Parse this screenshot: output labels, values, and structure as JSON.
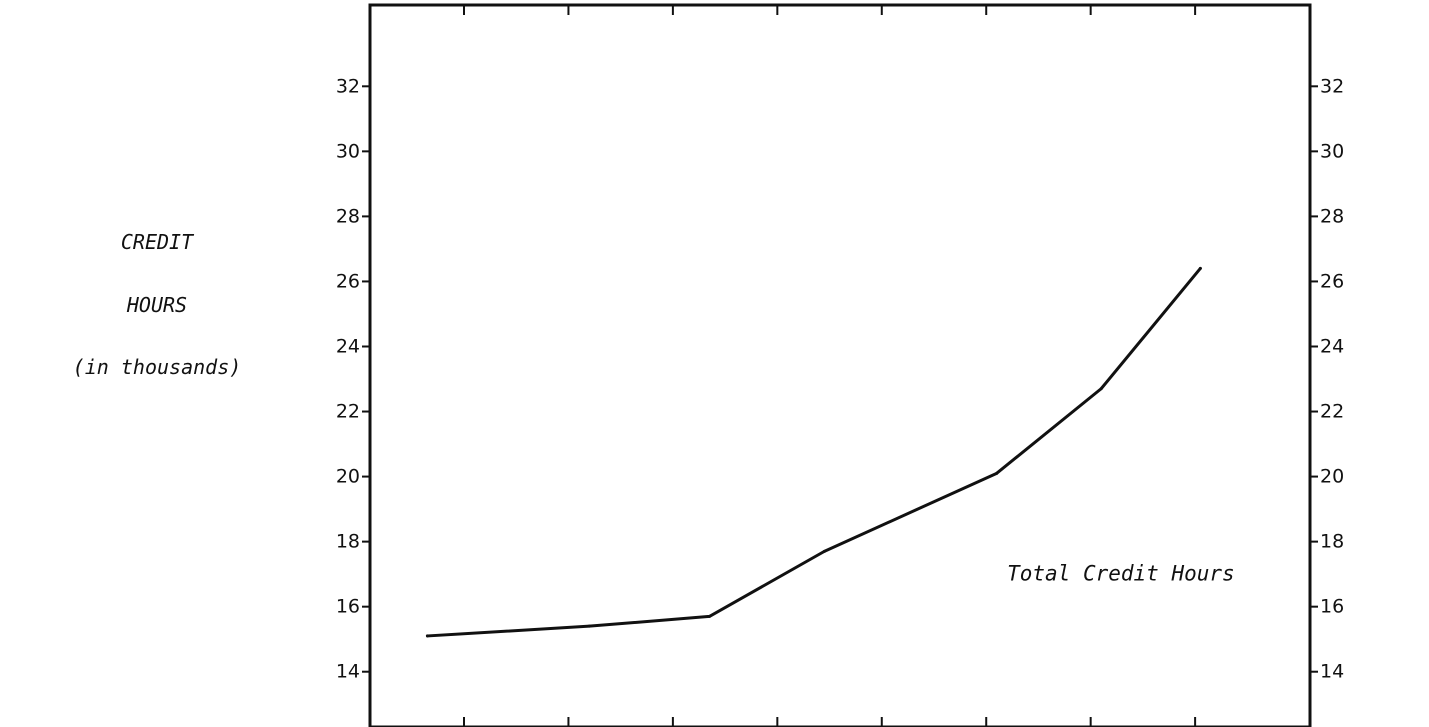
{
  "chart_data": {
    "type": "line",
    "ylabel": [
      "CREDIT",
      "HOURS",
      "(in thousands)"
    ],
    "y_ticks": [
      14,
      16,
      18,
      20,
      22,
      24,
      26,
      28,
      30,
      32
    ],
    "ylim": [
      12.3,
      34.5
    ],
    "x": [
      1,
      2,
      3,
      4,
      5,
      6,
      7,
      8
    ],
    "xlim": [
      0.1,
      9.1
    ],
    "series": [
      {
        "name": "",
        "values": [
          15.1,
          15.4,
          15.7,
          17.7,
          20.1,
          22.7,
          26.4
        ],
        "x": [
          0.65,
          2.2,
          3.35,
          4.45,
          6.1,
          7.1,
          8.05
        ]
      }
    ],
    "annotations": [
      {
        "text": "Total Credit Hours",
        "x": 6.2,
        "y": 16.8
      }
    ],
    "grid": false,
    "line_color": "#111111"
  }
}
